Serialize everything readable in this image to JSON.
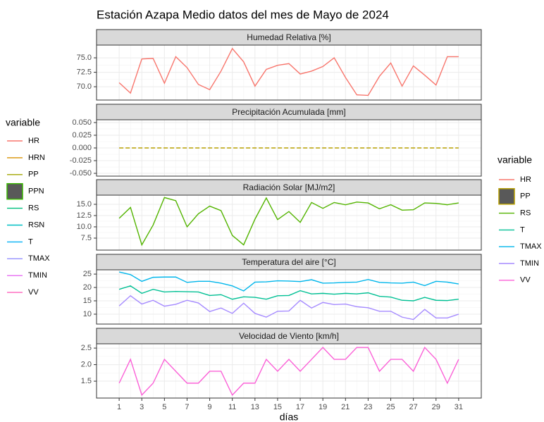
{
  "title": "Estación Azapa Medio datos del mes de Mayo de 2024",
  "legend_left": {
    "title": "variable",
    "items": [
      {
        "name": "HR",
        "color": "#F8766D"
      },
      {
        "name": "HRN",
        "color": "#D89000"
      },
      {
        "name": "PP",
        "color": "#A3A500"
      },
      {
        "name": "PPN",
        "color": "#39B600",
        "shape": "box"
      },
      {
        "name": "RS",
        "color": "#00BF7D"
      },
      {
        "name": "RSN",
        "color": "#00BFC4"
      },
      {
        "name": "T",
        "color": "#00B0F6"
      },
      {
        "name": "TMAX",
        "color": "#9590FF"
      },
      {
        "name": "TMIN",
        "color": "#E76BF3"
      },
      {
        "name": "VV",
        "color": "#FF62BC"
      }
    ]
  },
  "legend_right": {
    "title": "variable",
    "items": [
      {
        "name": "HR",
        "color": "#F8766D"
      },
      {
        "name": "PP",
        "color": "#B79F00",
        "shape": "box"
      },
      {
        "name": "RS",
        "color": "#53B400"
      },
      {
        "name": "T",
        "color": "#00C094"
      },
      {
        "name": "TMAX",
        "color": "#00B6EB"
      },
      {
        "name": "TMIN",
        "color": "#A58AFF"
      },
      {
        "name": "VV",
        "color": "#FB61D7"
      }
    ]
  },
  "chart_data": [
    {
      "type": "line",
      "title": "Humedad Relativa [%]",
      "x": [
        1,
        2,
        3,
        4,
        5,
        6,
        7,
        8,
        9,
        10,
        11,
        12,
        13,
        14,
        15,
        16,
        17,
        18,
        19,
        20,
        21,
        22,
        23,
        24,
        25,
        26,
        27,
        28,
        29,
        30,
        31
      ],
      "xlim": [
        -1,
        33
      ],
      "xticks": [
        1,
        3,
        5,
        7,
        9,
        11,
        13,
        15,
        17,
        19,
        21,
        23,
        25,
        27,
        29,
        31
      ],
      "ylim": [
        67.7,
        77.2
      ],
      "yticks": [
        {
          "value": 70,
          "label": "70.0"
        },
        72.5,
        {
          "value": 75,
          "label": "75.0"
        }
      ],
      "grid": true,
      "series": [
        {
          "name": "HR",
          "color": "#F8766D",
          "values": [
            70.7,
            68.9,
            74.8,
            74.9,
            70.6,
            75.2,
            73.3,
            70.4,
            69.5,
            72.7,
            76.6,
            74.3,
            70.1,
            73.0,
            73.7,
            74.0,
            72.2,
            72.7,
            73.5,
            75.0,
            71.6,
            68.6,
            68.5,
            71.8,
            74.1,
            70.1,
            73.6,
            72.0,
            70.3,
            75.2,
            75.2
          ]
        }
      ]
    },
    {
      "type": "line",
      "title": "Precipitación Acumulada [mm]",
      "x": [
        1,
        2,
        3,
        4,
        5,
        6,
        7,
        8,
        9,
        10,
        11,
        12,
        13,
        14,
        15,
        16,
        17,
        18,
        19,
        20,
        21,
        22,
        23,
        24,
        25,
        26,
        27,
        28,
        29,
        30,
        31
      ],
      "xlim": [
        -1,
        33
      ],
      "xticks": [
        1,
        3,
        5,
        7,
        9,
        11,
        13,
        15,
        17,
        19,
        21,
        23,
        25,
        27,
        29,
        31
      ],
      "ylim": [
        -0.0555,
        0.0555
      ],
      "yticks": [
        {
          "value": -0.05,
          "label": "-0.050"
        },
        {
          "value": -0.025,
          "label": "-0.025"
        },
        {
          "value": 0,
          "label": "0.000"
        },
        {
          "value": 0.025,
          "label": "0.025"
        },
        {
          "value": 0.05,
          "label": "0.050"
        }
      ],
      "grid": true,
      "series": [
        {
          "name": "PP",
          "color": "#B79F00",
          "dash": "6 3",
          "values": [
            0,
            0,
            0,
            0,
            0,
            0,
            0,
            0,
            0,
            0,
            0,
            0,
            0,
            0,
            0,
            0,
            0,
            0,
            0,
            0,
            0,
            0,
            0,
            0,
            0,
            0,
            0,
            0,
            0,
            0,
            0
          ]
        }
      ]
    },
    {
      "type": "line",
      "title": "Radiación Solar [MJ/m2]",
      "x": [
        1,
        2,
        3,
        4,
        5,
        6,
        7,
        8,
        9,
        10,
        11,
        12,
        13,
        14,
        15,
        16,
        17,
        18,
        19,
        20,
        21,
        22,
        23,
        24,
        25,
        26,
        27,
        28,
        29,
        30,
        31
      ],
      "xlim": [
        -1,
        33
      ],
      "xticks": [
        1,
        3,
        5,
        7,
        9,
        11,
        13,
        15,
        17,
        19,
        21,
        23,
        25,
        27,
        29,
        31
      ],
      "ylim": [
        4.84,
        17.03
      ],
      "yticks": [
        7.5,
        {
          "value": 10,
          "label": "10.0"
        },
        12.5,
        {
          "value": 15,
          "label": "15.0"
        }
      ],
      "grid": true,
      "series": [
        {
          "name": "RS",
          "color": "#53B400",
          "values": [
            11.9,
            14.3,
            6.0,
            10.4,
            16.5,
            15.8,
            10.0,
            12.9,
            14.6,
            13.6,
            8.1,
            6.0,
            11.7,
            16.4,
            11.6,
            13.4,
            11.0,
            15.4,
            14.1,
            15.4,
            14.9,
            15.5,
            15.3,
            14.0,
            14.9,
            13.7,
            13.8,
            15.3,
            15.2,
            14.9,
            15.3
          ]
        }
      ]
    },
    {
      "type": "line",
      "title": "Temperatura del aire [°C]",
      "x": [
        1,
        2,
        3,
        4,
        5,
        6,
        7,
        8,
        9,
        10,
        11,
        12,
        13,
        14,
        15,
        16,
        17,
        18,
        19,
        20,
        21,
        22,
        23,
        24,
        25,
        26,
        27,
        28,
        29,
        30,
        31
      ],
      "xlim": [
        -1,
        33
      ],
      "xticks": [
        1,
        3,
        5,
        7,
        9,
        11,
        13,
        15,
        17,
        19,
        21,
        23,
        25,
        27,
        29,
        31
      ],
      "ylim": [
        6.3,
        26.6
      ],
      "yticks": [
        10,
        15,
        20,
        25
      ],
      "grid": true,
      "series": [
        {
          "name": "T",
          "color": "#00C094",
          "values": [
            19.3,
            20.6,
            17.8,
            19.3,
            18.3,
            18.5,
            18.4,
            18.3,
            17.0,
            17.3,
            15.6,
            16.5,
            16.3,
            15.6,
            16.9,
            17.0,
            18.8,
            17.6,
            17.8,
            17.5,
            17.8,
            17.6,
            18.0,
            16.7,
            16.4,
            15.2,
            15.0,
            16.3,
            15.2,
            15.1,
            15.6
          ]
        },
        {
          "name": "TMAX",
          "color": "#00B6EB",
          "values": [
            25.8,
            24.8,
            22.3,
            23.8,
            23.9,
            23.9,
            21.9,
            22.3,
            22.3,
            21.6,
            20.6,
            18.7,
            22.0,
            22.1,
            22.5,
            22.4,
            22.2,
            22.9,
            21.6,
            21.7,
            21.9,
            22.0,
            23.0,
            21.9,
            21.7,
            21.6,
            22.0,
            20.7,
            22.3,
            22.0,
            21.3
          ]
        },
        {
          "name": "TMIN",
          "color": "#A58AFF",
          "values": [
            13.1,
            16.9,
            13.8,
            15.2,
            13.0,
            13.7,
            15.2,
            14.2,
            11.0,
            12.3,
            10.3,
            14.1,
            10.3,
            8.9,
            11.1,
            11.2,
            15.2,
            12.3,
            14.4,
            13.6,
            13.8,
            12.8,
            12.4,
            11.1,
            11.1,
            8.9,
            8.0,
            11.8,
            8.6,
            8.6,
            10.0
          ]
        }
      ]
    },
    {
      "type": "line",
      "title": "Velocidad de Viento [km/h]",
      "x_label": "días",
      "x": [
        1,
        2,
        3,
        4,
        5,
        6,
        7,
        8,
        9,
        10,
        11,
        12,
        13,
        14,
        15,
        16,
        17,
        18,
        19,
        20,
        21,
        22,
        23,
        24,
        25,
        26,
        27,
        28,
        29,
        30,
        31
      ],
      "xlim": [
        -1,
        33
      ],
      "xticks": [
        1,
        3,
        5,
        7,
        9,
        11,
        13,
        15,
        17,
        19,
        21,
        23,
        25,
        27,
        29,
        31
      ],
      "ylim": [
        0.99,
        2.63
      ],
      "yticks": [
        1.5,
        {
          "value": 2,
          "label": "2.0"
        },
        2.5
      ],
      "grid": true,
      "series": [
        {
          "name": "VV",
          "color": "#FB61D7",
          "values": [
            1.44,
            2.16,
            1.08,
            1.44,
            2.16,
            1.8,
            1.44,
            1.44,
            1.8,
            1.8,
            1.08,
            1.44,
            1.44,
            2.16,
            1.8,
            2.16,
            1.8,
            2.16,
            2.52,
            2.16,
            2.16,
            2.52,
            2.52,
            1.8,
            2.16,
            2.16,
            1.8,
            2.52,
            2.16,
            1.44,
            2.16
          ]
        }
      ]
    }
  ]
}
